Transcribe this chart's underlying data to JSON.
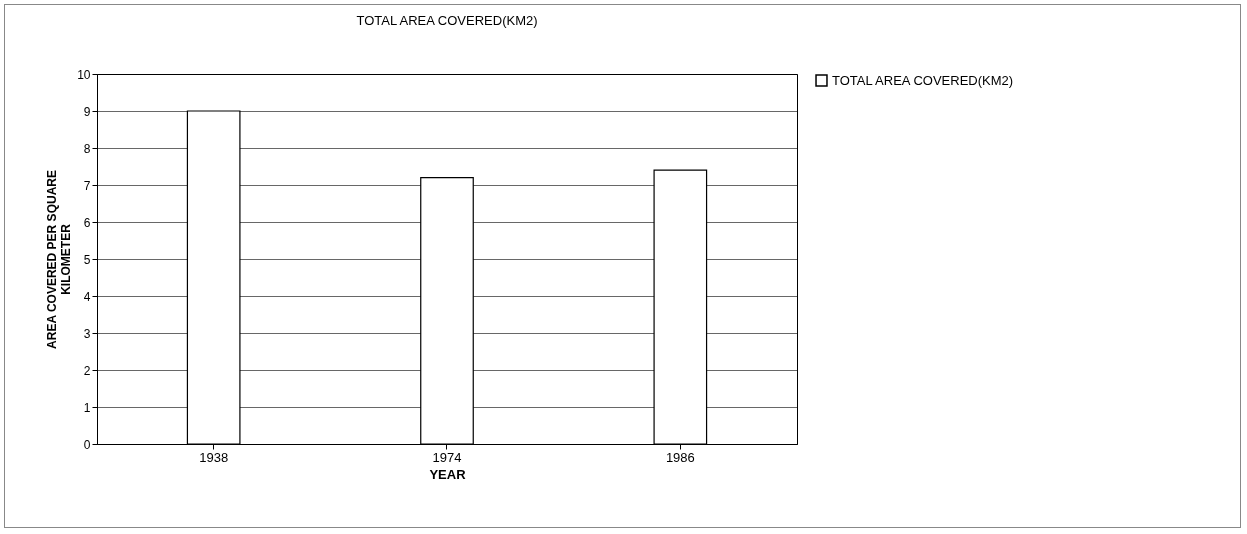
{
  "chart_data": {
    "type": "bar",
    "title": "TOTAL AREA COVERED(KM2)",
    "xlabel": "YEAR",
    "ylabel": "AREA COVERED PER SQUARE KILOMETER",
    "categories": [
      "1938",
      "1974",
      "1986"
    ],
    "series": [
      {
        "name": "TOTAL AREA COVERED(KM2)",
        "color": "#ffffff",
        "values": [
          9,
          7.2,
          7.4
        ]
      }
    ],
    "ylim": [
      0,
      10
    ],
    "yticks": [
      0,
      1,
      2,
      3,
      4,
      5,
      6,
      7,
      8,
      9,
      10
    ],
    "grid": "y",
    "legend": "right"
  }
}
